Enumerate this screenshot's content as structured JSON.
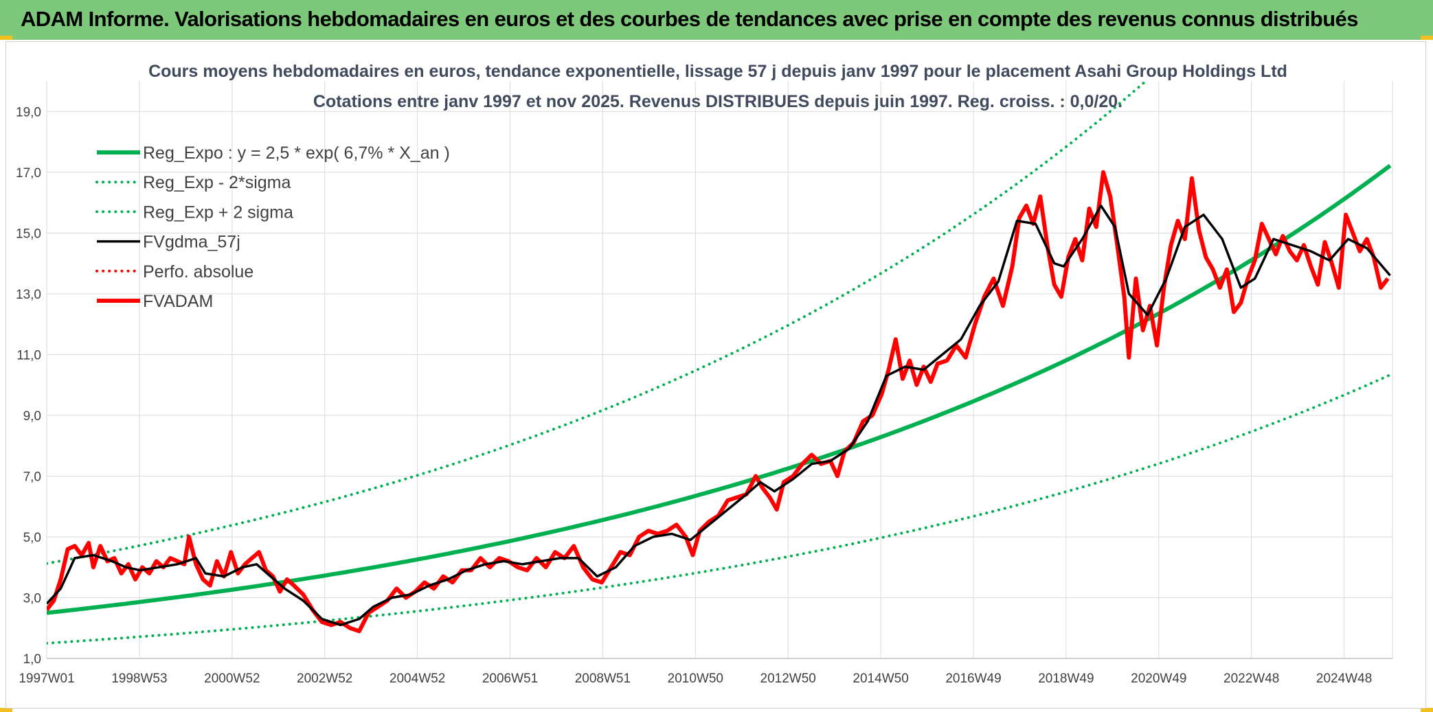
{
  "banner": {
    "title": "ADAM Informe. Valorisations hebdomadaires en euros et des courbes de tendances avec prise en compte des revenus connus distribués",
    "color": "#7dc87a"
  },
  "chart_data": {
    "type": "line",
    "title": "Cours moyens hebdomadaires en euros, tendance exponentielle, lissage 57 j depuis janv 1997 pour le placement Asahi Group Holdings Ltd",
    "subtitle": "Cotations entre janv 1997 et nov 2025. Revenus DISTRIBUES depuis juin 1997. Reg. croiss. : 0,0/20.",
    "xlabel": "",
    "ylabel": "",
    "x_ticks": [
      "1997W01",
      "1998W53",
      "2000W52",
      "2002W52",
      "2004W52",
      "2006W51",
      "2008W51",
      "2010W50",
      "2012W50",
      "2014W50",
      "2016W49",
      "2018W49",
      "2020W49",
      "2022W48",
      "2024W48"
    ],
    "xlim": [
      1997.0,
      2025.85
    ],
    "y_ticks": [
      "1,0",
      "3,0",
      "5,0",
      "7,0",
      "9,0",
      "11,0",
      "13,0",
      "15,0",
      "17,0",
      "19,0"
    ],
    "ylim": [
      1.0,
      20.0
    ],
    "grid": true,
    "legend_position": "top-left",
    "series": [
      {
        "name": "Reg_Expo : y = 2,5 * exp( 6,7% *  X_an )",
        "color": "#00b050",
        "style": "solid-thick",
        "formula": {
          "a": 2.5,
          "b": 0.067,
          "mult": 1.0
        }
      },
      {
        "name": "Reg_Exp - 2*sigma",
        "color": "#00b050",
        "style": "dotted",
        "formula": {
          "a": 2.5,
          "b": 0.067,
          "mult": 0.6
        }
      },
      {
        "name": "Reg_Exp + 2 sigma",
        "color": "#00b050",
        "style": "dotted",
        "formula": {
          "a": 2.5,
          "b": 0.067,
          "mult": 1.65
        }
      },
      {
        "name": "FVgdma_57j",
        "color": "#000000",
        "style": "solid",
        "points": [
          [
            1997.0,
            2.8
          ],
          [
            1997.3,
            3.3
          ],
          [
            1997.6,
            4.3
          ],
          [
            1998.0,
            4.4
          ],
          [
            1998.4,
            4.2
          ],
          [
            1998.7,
            4.0
          ],
          [
            1999.0,
            3.9
          ],
          [
            1999.4,
            4.0
          ],
          [
            1999.8,
            4.1
          ],
          [
            2000.2,
            4.3
          ],
          [
            2000.4,
            3.8
          ],
          [
            2000.8,
            3.7
          ],
          [
            2001.2,
            4.0
          ],
          [
            2001.5,
            4.1
          ],
          [
            2001.8,
            3.7
          ],
          [
            2002.1,
            3.3
          ],
          [
            2002.5,
            2.9
          ],
          [
            2002.9,
            2.3
          ],
          [
            2003.3,
            2.1
          ],
          [
            2003.7,
            2.3
          ],
          [
            2004.0,
            2.7
          ],
          [
            2004.4,
            3.0
          ],
          [
            2004.8,
            3.1
          ],
          [
            2005.2,
            3.4
          ],
          [
            2005.6,
            3.6
          ],
          [
            2006.0,
            3.9
          ],
          [
            2006.4,
            4.1
          ],
          [
            2006.8,
            4.2
          ],
          [
            2007.2,
            4.1
          ],
          [
            2007.6,
            4.2
          ],
          [
            2008.0,
            4.3
          ],
          [
            2008.4,
            4.3
          ],
          [
            2008.8,
            3.7
          ],
          [
            2009.2,
            4.0
          ],
          [
            2009.6,
            4.7
          ],
          [
            2010.0,
            5.0
          ],
          [
            2010.4,
            5.1
          ],
          [
            2010.8,
            4.9
          ],
          [
            2011.2,
            5.4
          ],
          [
            2011.6,
            5.9
          ],
          [
            2012.0,
            6.4
          ],
          [
            2012.3,
            6.8
          ],
          [
            2012.6,
            6.5
          ],
          [
            2013.0,
            6.9
          ],
          [
            2013.4,
            7.4
          ],
          [
            2013.8,
            7.5
          ],
          [
            2014.2,
            7.9
          ],
          [
            2014.6,
            8.8
          ],
          [
            2015.0,
            10.3
          ],
          [
            2015.4,
            10.6
          ],
          [
            2015.8,
            10.5
          ],
          [
            2016.2,
            11.0
          ],
          [
            2016.6,
            11.5
          ],
          [
            2017.0,
            12.6
          ],
          [
            2017.4,
            13.4
          ],
          [
            2017.8,
            15.4
          ],
          [
            2018.2,
            15.3
          ],
          [
            2018.6,
            14.0
          ],
          [
            2018.8,
            13.9
          ],
          [
            2019.2,
            14.8
          ],
          [
            2019.6,
            15.9
          ],
          [
            2019.9,
            15.2
          ],
          [
            2020.2,
            13.0
          ],
          [
            2020.6,
            12.3
          ],
          [
            2021.0,
            13.5
          ],
          [
            2021.4,
            15.2
          ],
          [
            2021.8,
            15.6
          ],
          [
            2022.2,
            14.8
          ],
          [
            2022.6,
            13.2
          ],
          [
            2022.9,
            13.5
          ],
          [
            2023.3,
            14.8
          ],
          [
            2023.7,
            14.6
          ],
          [
            2024.1,
            14.4
          ],
          [
            2024.5,
            14.1
          ],
          [
            2024.9,
            14.8
          ],
          [
            2025.3,
            14.5
          ],
          [
            2025.8,
            13.6
          ]
        ]
      },
      {
        "name": "Perfo. absolue",
        "color": "#ff0000",
        "style": "dotted",
        "points": []
      },
      {
        "name": "FVADAM",
        "color": "#ff0000",
        "style": "solid-thick",
        "points": [
          [
            1997.0,
            2.6
          ],
          [
            1997.15,
            2.9
          ],
          [
            1997.3,
            3.6
          ],
          [
            1997.45,
            4.6
          ],
          [
            1997.6,
            4.7
          ],
          [
            1997.75,
            4.4
          ],
          [
            1997.9,
            4.8
          ],
          [
            1998.0,
            4.0
          ],
          [
            1998.15,
            4.7
          ],
          [
            1998.3,
            4.2
          ],
          [
            1998.45,
            4.3
          ],
          [
            1998.6,
            3.8
          ],
          [
            1998.75,
            4.1
          ],
          [
            1998.9,
            3.6
          ],
          [
            1999.05,
            4.0
          ],
          [
            1999.2,
            3.8
          ],
          [
            1999.35,
            4.2
          ],
          [
            1999.5,
            4.0
          ],
          [
            1999.65,
            4.3
          ],
          [
            1999.8,
            4.2
          ],
          [
            1999.95,
            4.1
          ],
          [
            2000.05,
            5.0
          ],
          [
            2000.2,
            4.1
          ],
          [
            2000.35,
            3.6
          ],
          [
            2000.5,
            3.4
          ],
          [
            2000.65,
            4.2
          ],
          [
            2000.8,
            3.7
          ],
          [
            2000.95,
            4.5
          ],
          [
            2001.1,
            3.8
          ],
          [
            2001.25,
            4.1
          ],
          [
            2001.4,
            4.3
          ],
          [
            2001.55,
            4.5
          ],
          [
            2001.7,
            3.9
          ],
          [
            2001.85,
            3.7
          ],
          [
            2002.0,
            3.2
          ],
          [
            2002.15,
            3.6
          ],
          [
            2002.3,
            3.4
          ],
          [
            2002.5,
            3.1
          ],
          [
            2002.7,
            2.6
          ],
          [
            2002.9,
            2.2
          ],
          [
            2003.1,
            2.1
          ],
          [
            2003.3,
            2.2
          ],
          [
            2003.5,
            2.0
          ],
          [
            2003.7,
            1.9
          ],
          [
            2003.9,
            2.5
          ],
          [
            2004.1,
            2.7
          ],
          [
            2004.3,
            2.9
          ],
          [
            2004.5,
            3.3
          ],
          [
            2004.7,
            3.0
          ],
          [
            2004.9,
            3.2
          ],
          [
            2005.1,
            3.5
          ],
          [
            2005.3,
            3.3
          ],
          [
            2005.5,
            3.7
          ],
          [
            2005.7,
            3.5
          ],
          [
            2005.9,
            3.9
          ],
          [
            2006.1,
            3.9
          ],
          [
            2006.3,
            4.3
          ],
          [
            2006.5,
            4.0
          ],
          [
            2006.7,
            4.3
          ],
          [
            2006.9,
            4.2
          ],
          [
            2007.1,
            4.0
          ],
          [
            2007.3,
            3.9
          ],
          [
            2007.5,
            4.3
          ],
          [
            2007.7,
            4.0
          ],
          [
            2007.9,
            4.5
          ],
          [
            2008.1,
            4.3
          ],
          [
            2008.3,
            4.7
          ],
          [
            2008.5,
            4.0
          ],
          [
            2008.7,
            3.6
          ],
          [
            2008.9,
            3.5
          ],
          [
            2009.1,
            4.0
          ],
          [
            2009.3,
            4.5
          ],
          [
            2009.5,
            4.4
          ],
          [
            2009.7,
            5.0
          ],
          [
            2009.9,
            5.2
          ],
          [
            2010.1,
            5.1
          ],
          [
            2010.3,
            5.2
          ],
          [
            2010.5,
            5.4
          ],
          [
            2010.7,
            5.0
          ],
          [
            2010.85,
            4.4
          ],
          [
            2011.0,
            5.2
          ],
          [
            2011.2,
            5.5
          ],
          [
            2011.4,
            5.7
          ],
          [
            2011.6,
            6.2
          ],
          [
            2011.8,
            6.3
          ],
          [
            2012.0,
            6.4
          ],
          [
            2012.2,
            7.0
          ],
          [
            2012.35,
            6.6
          ],
          [
            2012.5,
            6.3
          ],
          [
            2012.65,
            5.9
          ],
          [
            2012.8,
            6.8
          ],
          [
            2013.0,
            7.0
          ],
          [
            2013.2,
            7.4
          ],
          [
            2013.4,
            7.7
          ],
          [
            2013.6,
            7.4
          ],
          [
            2013.8,
            7.5
          ],
          [
            2013.95,
            7.0
          ],
          [
            2014.1,
            7.8
          ],
          [
            2014.3,
            8.1
          ],
          [
            2014.5,
            8.8
          ],
          [
            2014.7,
            9.0
          ],
          [
            2014.9,
            9.7
          ],
          [
            2015.05,
            10.5
          ],
          [
            2015.2,
            11.5
          ],
          [
            2015.35,
            10.2
          ],
          [
            2015.5,
            10.8
          ],
          [
            2015.65,
            10.0
          ],
          [
            2015.8,
            10.6
          ],
          [
            2015.95,
            10.1
          ],
          [
            2016.1,
            10.7
          ],
          [
            2016.3,
            10.8
          ],
          [
            2016.5,
            11.3
          ],
          [
            2016.7,
            10.9
          ],
          [
            2016.9,
            12.0
          ],
          [
            2017.1,
            12.9
          ],
          [
            2017.3,
            13.5
          ],
          [
            2017.5,
            12.6
          ],
          [
            2017.7,
            13.9
          ],
          [
            2017.85,
            15.5
          ],
          [
            2018.0,
            15.9
          ],
          [
            2018.15,
            15.3
          ],
          [
            2018.3,
            16.2
          ],
          [
            2018.45,
            14.6
          ],
          [
            2018.6,
            13.3
          ],
          [
            2018.75,
            12.9
          ],
          [
            2018.9,
            14.2
          ],
          [
            2019.05,
            14.8
          ],
          [
            2019.2,
            14.1
          ],
          [
            2019.35,
            15.8
          ],
          [
            2019.5,
            15.2
          ],
          [
            2019.65,
            17.0
          ],
          [
            2019.8,
            16.2
          ],
          [
            2019.95,
            14.6
          ],
          [
            2020.1,
            12.9
          ],
          [
            2020.2,
            10.9
          ],
          [
            2020.35,
            13.5
          ],
          [
            2020.5,
            11.8
          ],
          [
            2020.65,
            12.6
          ],
          [
            2020.8,
            11.3
          ],
          [
            2020.95,
            13.2
          ],
          [
            2021.1,
            14.6
          ],
          [
            2021.25,
            15.4
          ],
          [
            2021.4,
            14.8
          ],
          [
            2021.55,
            16.8
          ],
          [
            2021.7,
            15.1
          ],
          [
            2021.85,
            14.2
          ],
          [
            2022.0,
            13.8
          ],
          [
            2022.15,
            13.2
          ],
          [
            2022.3,
            13.8
          ],
          [
            2022.45,
            12.4
          ],
          [
            2022.6,
            12.7
          ],
          [
            2022.75,
            13.5
          ],
          [
            2022.9,
            14.1
          ],
          [
            2023.05,
            15.3
          ],
          [
            2023.2,
            14.8
          ],
          [
            2023.35,
            14.3
          ],
          [
            2023.5,
            14.9
          ],
          [
            2023.65,
            14.4
          ],
          [
            2023.8,
            14.1
          ],
          [
            2023.95,
            14.6
          ],
          [
            2024.1,
            13.9
          ],
          [
            2024.25,
            13.3
          ],
          [
            2024.4,
            14.7
          ],
          [
            2024.55,
            14.0
          ],
          [
            2024.7,
            13.2
          ],
          [
            2024.85,
            15.6
          ],
          [
            2025.0,
            15.0
          ],
          [
            2025.15,
            14.4
          ],
          [
            2025.3,
            14.8
          ],
          [
            2025.45,
            14.2
          ],
          [
            2025.6,
            13.2
          ],
          [
            2025.75,
            13.5
          ]
        ]
      }
    ]
  }
}
